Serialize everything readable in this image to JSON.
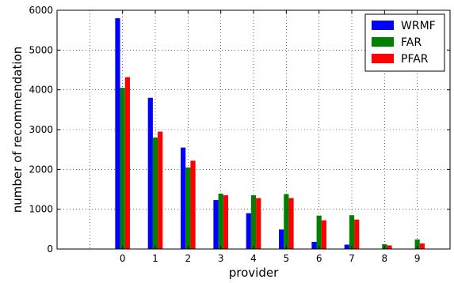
{
  "chart_data": {
    "type": "bar",
    "categories": [
      "0",
      "1",
      "2",
      "3",
      "4",
      "5",
      "6",
      "7",
      "8",
      "9"
    ],
    "xlabel": "provider",
    "ylabel": "number of recommendation",
    "ylim": [
      0,
      6000
    ],
    "yticks": [
      "0",
      "1000",
      "2000",
      "3000",
      "4000",
      "5000",
      "6000"
    ],
    "grid": true,
    "legend_position": "top-right",
    "series": [
      {
        "name": "WRMF",
        "color": "#0000ff",
        "values": [
          5800,
          3800,
          2550,
          1230,
          900,
          490,
          180,
          110,
          0,
          0
        ]
      },
      {
        "name": "FAR",
        "color": "#008000",
        "values": [
          4050,
          2800,
          2050,
          1390,
          1350,
          1380,
          840,
          850,
          120,
          240
        ]
      },
      {
        "name": "PFAR",
        "color": "#ff0000",
        "values": [
          4320,
          2950,
          2220,
          1350,
          1280,
          1280,
          720,
          740,
          90,
          140
        ]
      }
    ]
  }
}
